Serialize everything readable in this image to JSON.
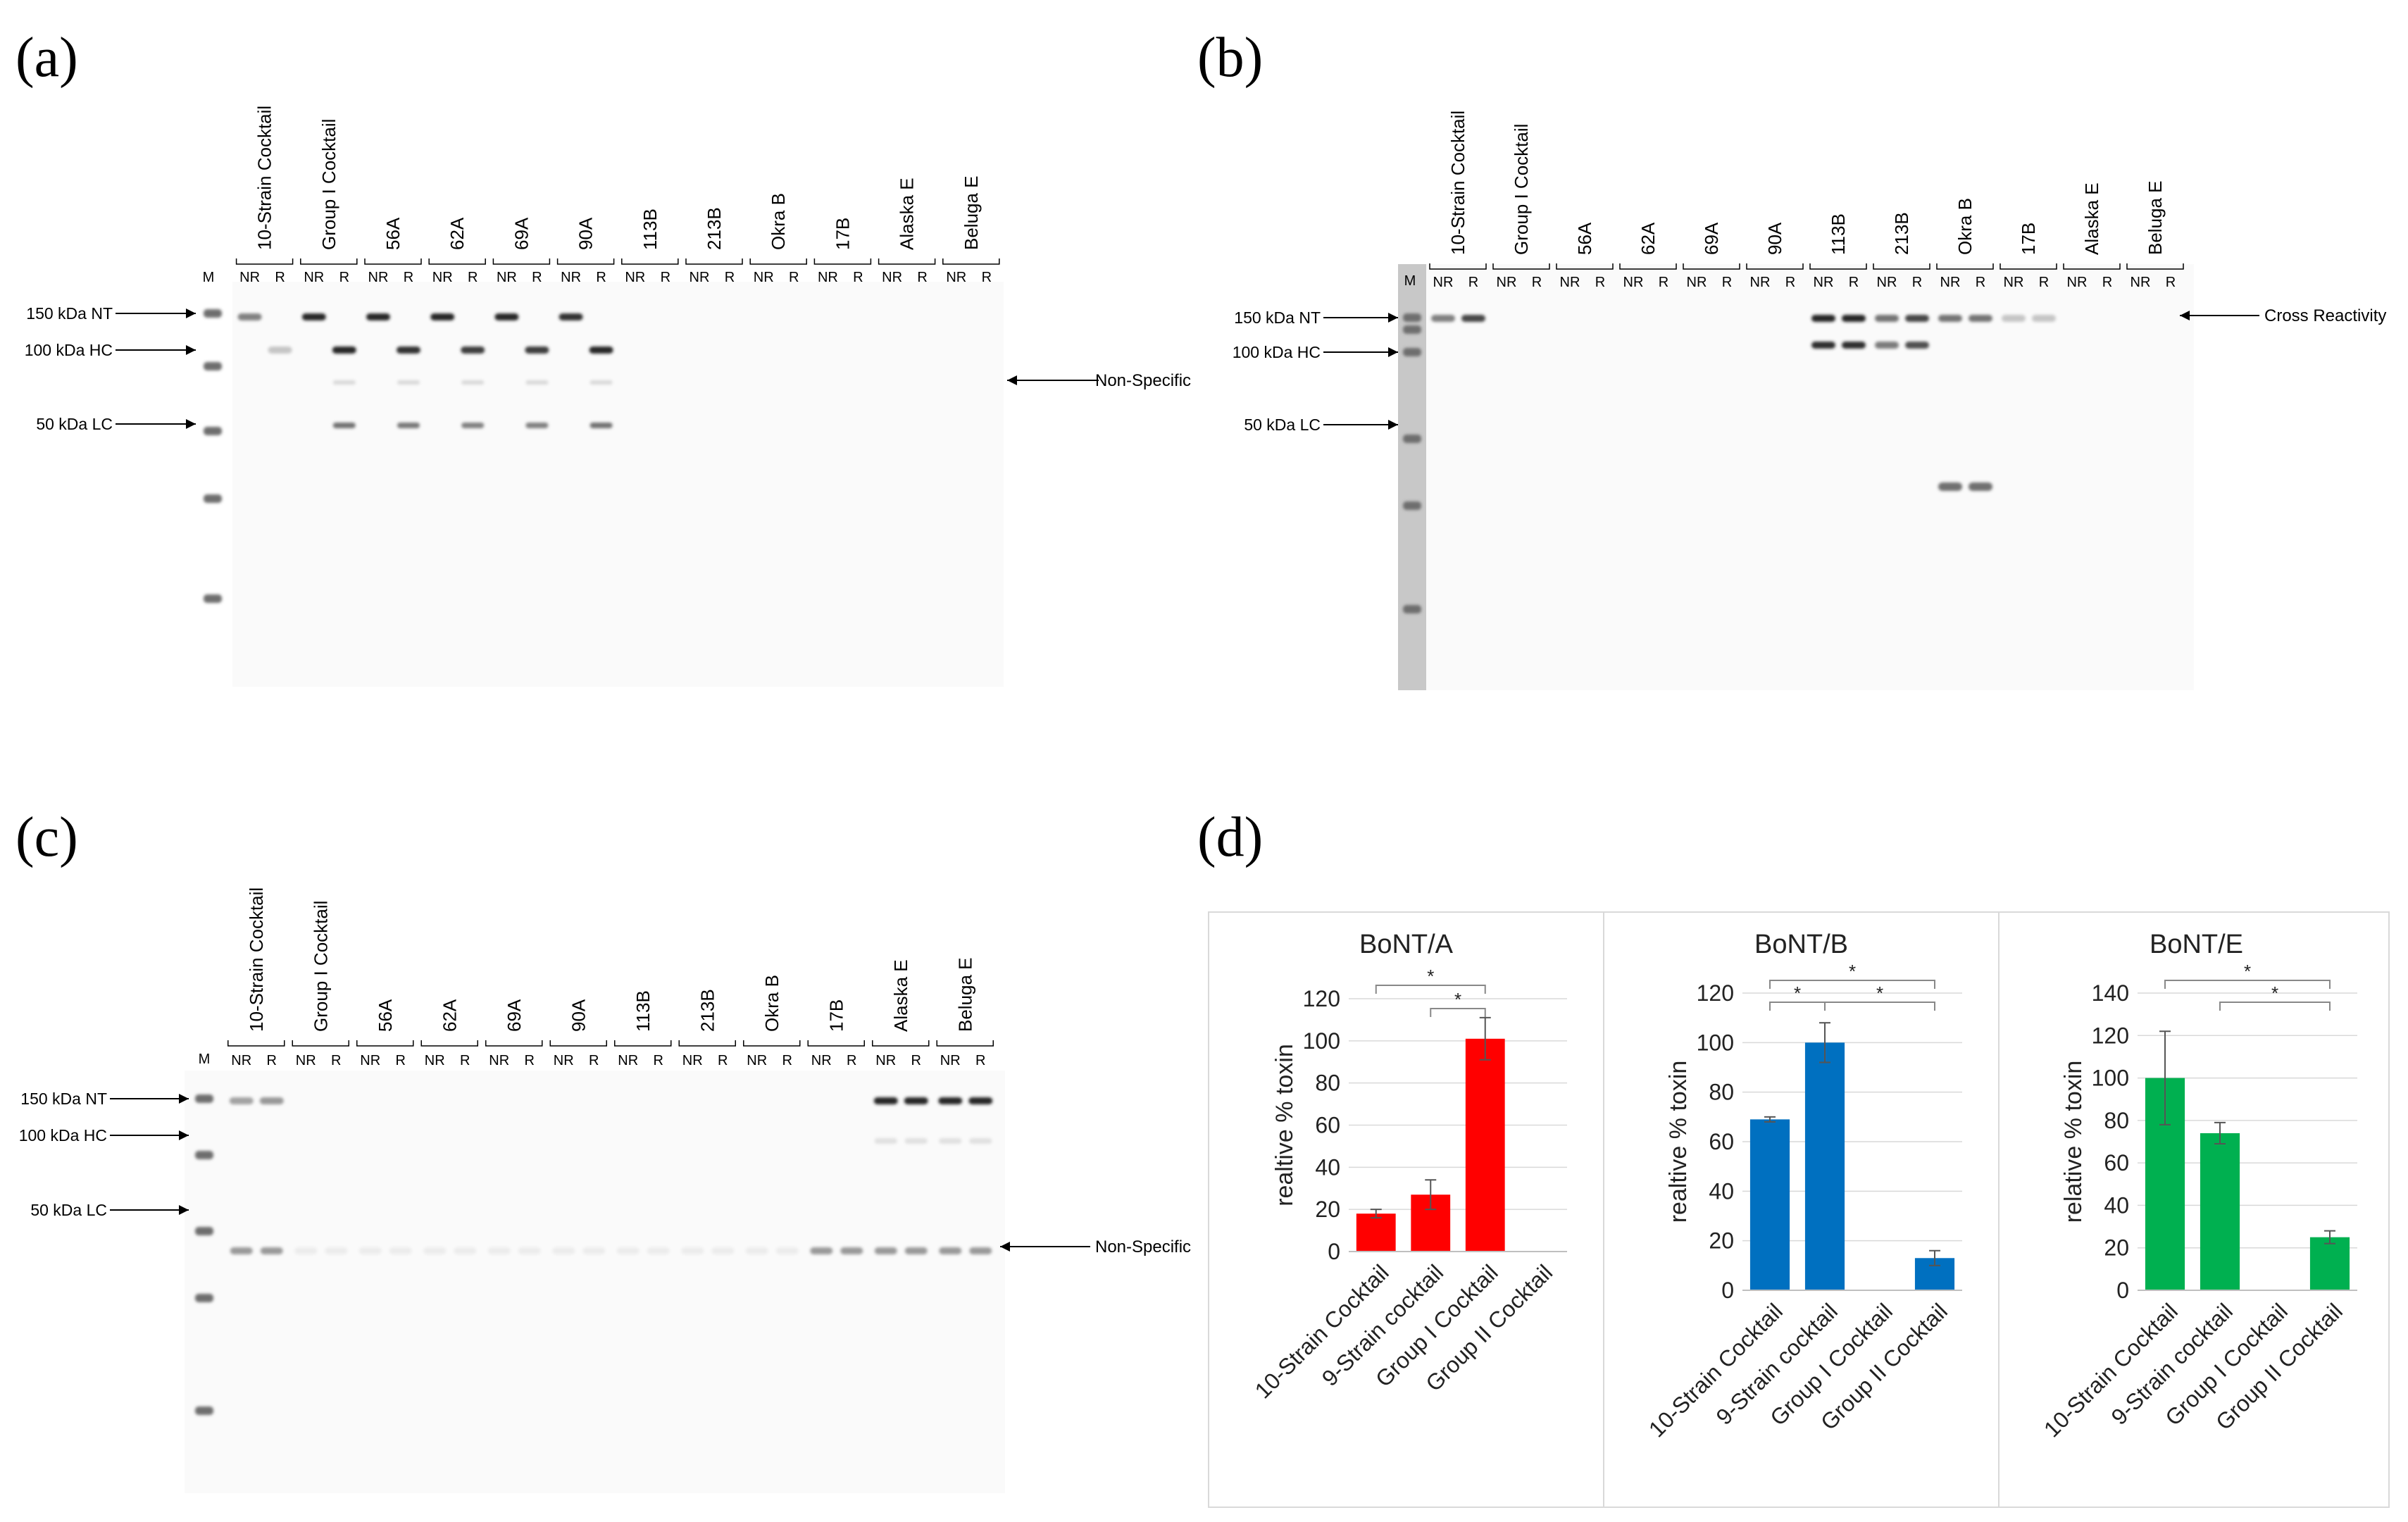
{
  "panels": [
    {
      "id": "a",
      "label": "(a)",
      "lanes": [
        "10-Strain Cocktail",
        "Group I Cocktail",
        "56A",
        "62A",
        "69A",
        "90A",
        "113B",
        "213B",
        "Okra B",
        "17B",
        "Alaska E",
        "Beluga E"
      ],
      "marker_label": "M",
      "sub_labels": [
        "NR",
        "R"
      ],
      "markers": [
        "150 kDa NT",
        "100 kDa HC",
        "50 kDa LC"
      ],
      "annotations": [
        "Non-Specific"
      ],
      "bands": [
        [
          0,
          0,
          0.55
        ],
        [
          0,
          1,
          0.25
        ],
        [
          1,
          0,
          0.95
        ],
        [
          1,
          1,
          0.95
        ],
        [
          2,
          0,
          0.95
        ],
        [
          2,
          1,
          0.9
        ],
        [
          3,
          0,
          0.95
        ],
        [
          3,
          1,
          0.85
        ],
        [
          4,
          0,
          0.95
        ],
        [
          4,
          1,
          0.85
        ],
        [
          5,
          0,
          0.9
        ],
        [
          5,
          1,
          0.95
        ]
      ]
    },
    {
      "id": "b",
      "label": "(b)",
      "lanes": [
        "10-Strain Cocktail",
        "Group I Cocktail",
        "56A",
        "62A",
        "69A",
        "90A",
        "113B",
        "213B",
        "Okra B",
        "17B",
        "Alaska E",
        "Beluga E"
      ],
      "marker_label": "M",
      "sub_labels": [
        "NR",
        "R"
      ],
      "markers": [
        "150 kDa NT",
        "100 kDa HC",
        "50 kDa LC"
      ],
      "annotations": [
        "Cross Reactivity"
      ],
      "bands": [
        [
          0,
          0,
          0.55
        ],
        [
          0,
          1,
          0.8
        ],
        [
          6,
          0,
          0.95
        ],
        [
          6,
          1,
          0.95
        ],
        [
          7,
          0,
          0.6
        ],
        [
          7,
          1,
          0.8
        ],
        [
          8,
          0,
          0.6
        ],
        [
          8,
          1,
          0.6
        ],
        [
          9,
          0,
          0.25
        ],
        [
          9,
          1,
          0.25
        ]
      ]
    },
    {
      "id": "c",
      "label": "(c)",
      "lanes": [
        "10-Strain Cocktail",
        "Group I Cocktail",
        "56A",
        "62A",
        "69A",
        "90A",
        "113B",
        "213B",
        "Okra B",
        "17B",
        "Alaska E",
        "Beluga E"
      ],
      "marker_label": "M",
      "sub_labels": [
        "NR",
        "R"
      ],
      "markers": [
        "150 kDa NT",
        "100 kDa HC",
        "50 kDa LC"
      ],
      "annotations": [
        "Non-Specific"
      ],
      "bands": [
        [
          0,
          0,
          0.4
        ],
        [
          0,
          1,
          0.45
        ],
        [
          10,
          0,
          0.95
        ],
        [
          10,
          1,
          0.95
        ],
        [
          11,
          0,
          0.95
        ],
        [
          11,
          1,
          0.95
        ]
      ]
    }
  ],
  "panel_d_label": "(d)",
  "chart_data": [
    {
      "type": "bar",
      "title": "BoNT/A",
      "ylabel": "realtive % toxin",
      "ylim": [
        0,
        120
      ],
      "yticks": [
        "0",
        "20",
        "40",
        "60",
        "80",
        "100",
        "120"
      ],
      "color": "#FF0000",
      "categories": [
        "10-Strain Cocktail",
        "9-Strain cocktail",
        "Group I Cocktail",
        "Group II Cocktail"
      ],
      "values": [
        18,
        27,
        101,
        null
      ],
      "errors": [
        2,
        7,
        10,
        null
      ],
      "significance": [
        {
          "from": 0,
          "to": 2,
          "label": "*"
        },
        {
          "from": 1,
          "to": 2,
          "label": "*"
        }
      ]
    },
    {
      "type": "bar",
      "title": "BoNT/B",
      "ylabel": "realtive % toxin",
      "ylim": [
        0,
        120
      ],
      "yticks": [
        "0",
        "20",
        "40",
        "60",
        "80",
        "100",
        "120"
      ],
      "color": "#0070C0",
      "categories": [
        "10-Strain Cocktail",
        "9-Strain cocktail",
        "Group I Cocktail",
        "Group II Cocktail"
      ],
      "values": [
        69,
        100,
        null,
        13
      ],
      "errors": [
        1,
        8,
        null,
        3
      ],
      "significance": [
        {
          "from": 0,
          "to": 3,
          "label": "*"
        },
        {
          "from": 0,
          "to": 1,
          "label": "*"
        },
        {
          "from": 1,
          "to": 3,
          "label": "*"
        }
      ]
    },
    {
      "type": "bar",
      "title": "BoNT/E",
      "ylabel": "relative % toxin",
      "ylim": [
        0,
        140
      ],
      "yticks": [
        "0",
        "20",
        "40",
        "60",
        "80",
        "100",
        "120",
        "140"
      ],
      "color": "#00B050",
      "categories": [
        "10-Strain Cocktail",
        "9-Strain cocktail",
        "Group I Cocktail",
        "Group II Cocktail"
      ],
      "values": [
        100,
        74,
        null,
        25
      ],
      "errors": [
        22,
        5,
        null,
        3
      ],
      "significance": [
        {
          "from": 0,
          "to": 3,
          "label": "*"
        },
        {
          "from": 1,
          "to": 3,
          "label": "*"
        }
      ]
    }
  ]
}
